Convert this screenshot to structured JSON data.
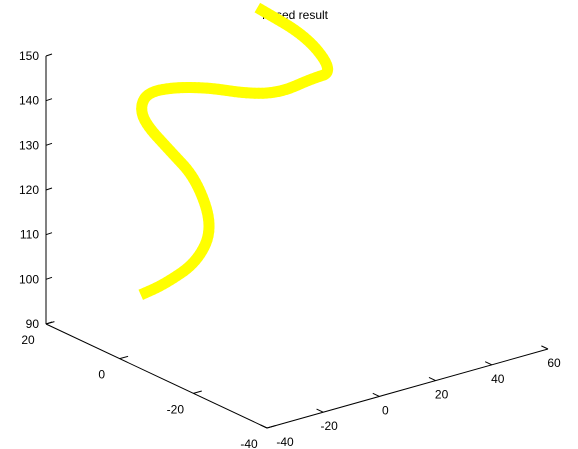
{
  "chart_data": {
    "type": "line3d",
    "title": "Fused result",
    "series_color": "#ffff00",
    "grid": false,
    "xlim": [
      -40,
      60
    ],
    "ylim": [
      -40,
      20
    ],
    "zlim": [
      90,
      150
    ],
    "x_ticks": [
      -40,
      -20,
      0,
      20,
      40,
      60
    ],
    "y_ticks": [
      -40,
      -20,
      0,
      20
    ],
    "z_ticks": [
      90,
      100,
      110,
      120,
      130,
      140,
      150
    ],
    "x_tick_labels": [
      "-40",
      "-20",
      "0",
      "20",
      "40",
      "60"
    ],
    "y_tick_labels": [
      "-40",
      "-20",
      "0",
      "20"
    ],
    "z_tick_labels": [
      "90",
      "100",
      "110",
      "120",
      "130",
      "140",
      "150"
    ],
    "points": [
      {
        "x": -22,
        "y": 8,
        "z": 98
      },
      {
        "x": -20,
        "y": 3,
        "z": 102
      },
      {
        "x": -15,
        "y": -2,
        "z": 108
      },
      {
        "x": -12,
        "y": -4,
        "z": 116
      },
      {
        "x": -14,
        "y": -1,
        "z": 126
      },
      {
        "x": -17,
        "y": 4,
        "z": 131
      },
      {
        "x": -18,
        "y": 10,
        "z": 135
      },
      {
        "x": -13,
        "y": 15,
        "z": 136
      },
      {
        "x": -5,
        "y": 19,
        "z": 136
      },
      {
        "x": 5,
        "y": 20,
        "z": 135
      },
      {
        "x": 15,
        "y": 18,
        "z": 134
      },
      {
        "x": 25,
        "y": 15,
        "z": 132
      },
      {
        "x": 33,
        "y": 12,
        "z": 132
      },
      {
        "x": 40,
        "y": 9,
        "z": 135
      },
      {
        "x": 44,
        "y": 6,
        "z": 137
      },
      {
        "x": 40,
        "y": 10,
        "z": 144
      },
      {
        "x": 30,
        "y": 16,
        "z": 150
      }
    ]
  }
}
